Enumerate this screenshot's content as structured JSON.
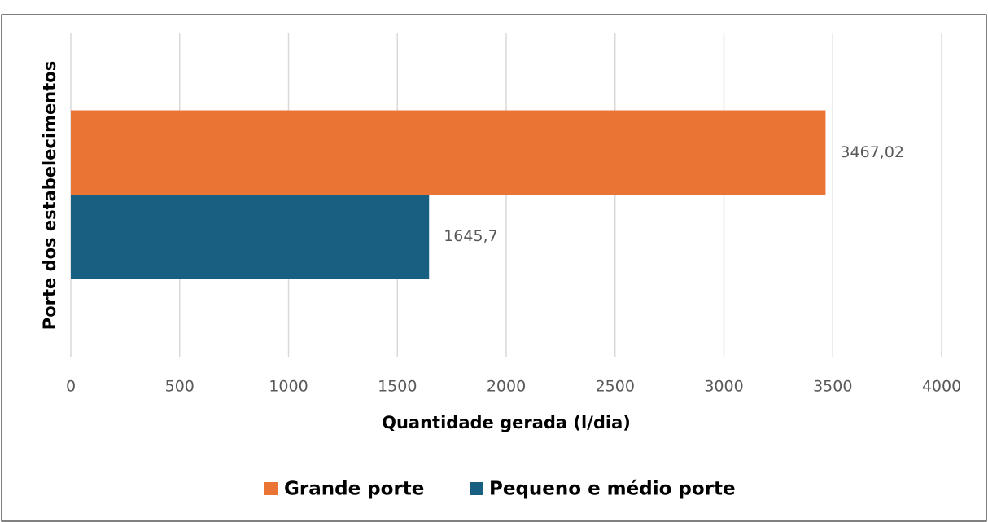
{
  "chart_data": {
    "type": "bar",
    "orientation": "horizontal",
    "categories": [
      null
    ],
    "series": [
      {
        "name": "Grande porte",
        "color": "#ea7434",
        "values": [
          3467.02
        ],
        "value_labels": [
          "3467,02"
        ]
      },
      {
        "name": "Pequeno e médio porte",
        "color": "#185f81",
        "values": [
          1645.7
        ],
        "value_labels": [
          "1645,7"
        ]
      }
    ],
    "xlabel": "Quantidade gerada (l/dia)",
    "ylabel": "Porte dos estabelecimentos",
    "xlim": [
      0,
      4000
    ],
    "xticks": [
      0,
      500,
      1000,
      1500,
      2000,
      2500,
      3000,
      3500,
      4000
    ],
    "grid": true,
    "legend": "bottom"
  }
}
